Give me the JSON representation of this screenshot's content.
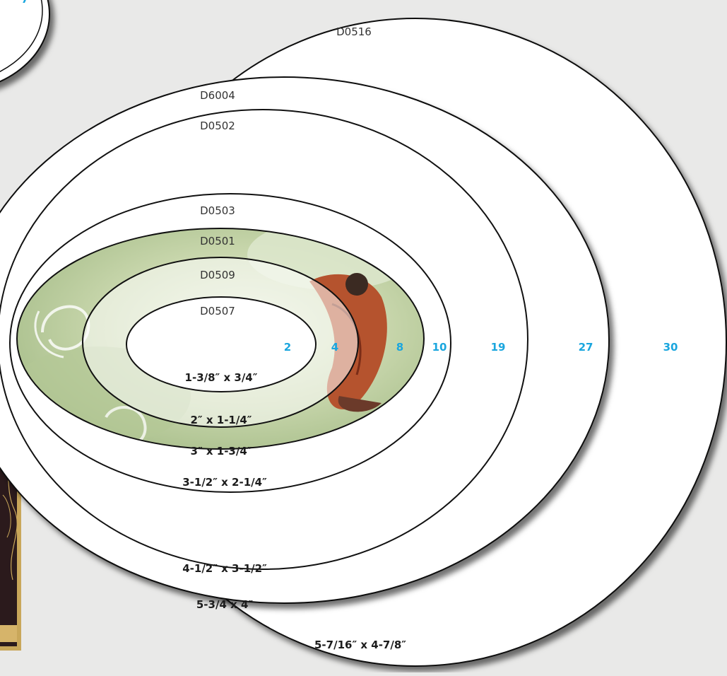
{
  "colors": {
    "background": "#e9e9e8",
    "oval_fill": "#ffffff",
    "oval_stroke": "#111111",
    "count_color": "#1aa6de",
    "card_dark": "#2b1a1c",
    "card_gold": "#c9a75a"
  },
  "ovals": [
    {
      "code": "D0516",
      "size": "5-7/16″ x 4-7/8″",
      "count": "30"
    },
    {
      "code": "D6004",
      "size": "5-3/4 x 4″",
      "count": "27"
    },
    {
      "code": "D0502",
      "size": "4-1/2″ x 3-1/2″",
      "count": "19"
    },
    {
      "code": "D0503",
      "size": "3-1/2″ x 2-1/4″",
      "count": "10"
    },
    {
      "code": "D0501",
      "size": "3″ x 1-3/4″",
      "count": "8"
    },
    {
      "code": "D0509",
      "size": "2″ x 1-1/4″",
      "count": "4"
    },
    {
      "code": "D0507",
      "size": "1-3/8″ x 3/4″",
      "count": "2"
    }
  ]
}
